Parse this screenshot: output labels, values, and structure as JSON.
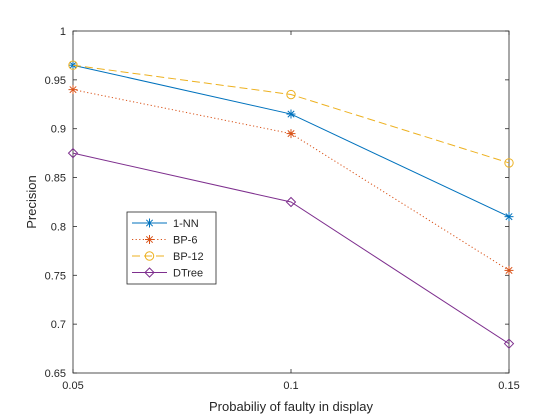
{
  "chart_data": {
    "type": "line",
    "title": "",
    "xlabel": "Probabiliy of faulty in display",
    "ylabel": "Precision",
    "x": [
      0.05,
      0.1,
      0.15
    ],
    "xlim": [
      0.05,
      0.15
    ],
    "ylim": [
      0.65,
      1.0
    ],
    "xticks": [
      "0.05",
      "0.1",
      "0.15"
    ],
    "yticks": [
      "0.65",
      "0.7",
      "0.75",
      "0.8",
      "0.85",
      "0.9",
      "0.95",
      "1"
    ],
    "grid": false,
    "legend_position": "lower-left",
    "series": [
      {
        "name": "1-NN",
        "values": [
          0.965,
          0.915,
          0.81
        ],
        "color": "#0072BD",
        "line": "solid",
        "marker": "asterisk"
      },
      {
        "name": "BP-6",
        "values": [
          0.94,
          0.895,
          0.755
        ],
        "color": "#D95319",
        "line": "dotted",
        "marker": "asterisk"
      },
      {
        "name": "BP-12",
        "values": [
          0.965,
          0.935,
          0.865
        ],
        "color": "#EDB120",
        "line": "dashed",
        "marker": "circle"
      },
      {
        "name": "DTree",
        "values": [
          0.875,
          0.825,
          0.68
        ],
        "color": "#7E2F8E",
        "line": "solid",
        "marker": "diamond"
      }
    ]
  }
}
